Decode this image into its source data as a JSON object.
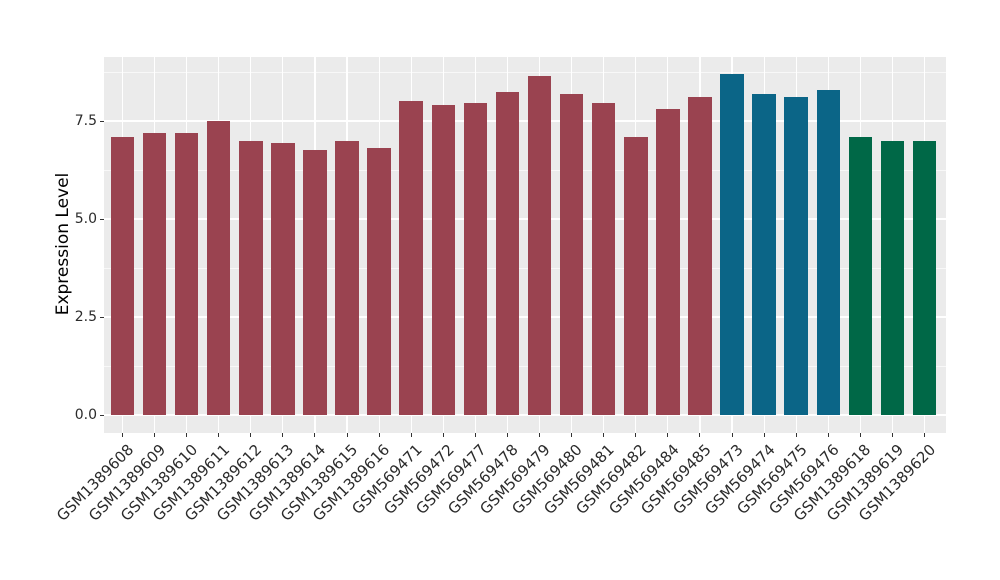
{
  "chart_data": {
    "type": "bar",
    "title": "",
    "xlabel": "",
    "ylabel": "Expression Level",
    "categories": [
      "GSM1389608",
      "GSM1389609",
      "GSM1389610",
      "GSM1389611",
      "GSM1389612",
      "GSM1389613",
      "GSM1389614",
      "GSM1389615",
      "GSM1389616",
      "GSM569471",
      "GSM569472",
      "GSM569477",
      "GSM569478",
      "GSM569479",
      "GSM569480",
      "GSM569481",
      "GSM569482",
      "GSM569484",
      "GSM569485",
      "GSM569473",
      "GSM569474",
      "GSM569475",
      "GSM569476",
      "GSM1389618",
      "GSM1389619",
      "GSM1389620"
    ],
    "values": [
      7.1,
      7.2,
      7.2,
      7.5,
      7.0,
      6.95,
      6.75,
      7.0,
      6.8,
      8.0,
      7.9,
      7.95,
      8.25,
      8.65,
      8.2,
      7.95,
      7.1,
      7.8,
      8.1,
      8.7,
      8.2,
      8.1,
      8.3,
      7.1,
      7.0,
      7.0
    ],
    "groups": [
      "darkred",
      "darkred",
      "darkred",
      "darkred",
      "darkred",
      "darkred",
      "darkred",
      "darkred",
      "darkred",
      "darkred",
      "darkred",
      "darkred",
      "darkred",
      "darkred",
      "darkred",
      "darkred",
      "darkred",
      "darkred",
      "darkred",
      "teal",
      "teal",
      "teal",
      "teal",
      "darkgreen",
      "darkgreen",
      "darkgreen"
    ],
    "group_colors": {
      "darkred": "#9A4350",
      "teal": "#0B6587",
      "darkgreen": "#006847"
    },
    "yticks": [
      0.0,
      2.5,
      5.0,
      7.5
    ],
    "ytick_labels": [
      "0.0",
      "2.5",
      "5.0",
      "7.5"
    ],
    "minor_yticks": [
      1.25,
      3.75,
      6.25,
      8.75
    ],
    "ylim": [
      -0.45,
      9.13
    ],
    "grid": true,
    "legend": "none",
    "xtick_angle_deg": 45,
    "bar_width_fraction": 0.73,
    "panel_background": "#EBEBEB",
    "gridline_color": "#FFFFFF"
  }
}
